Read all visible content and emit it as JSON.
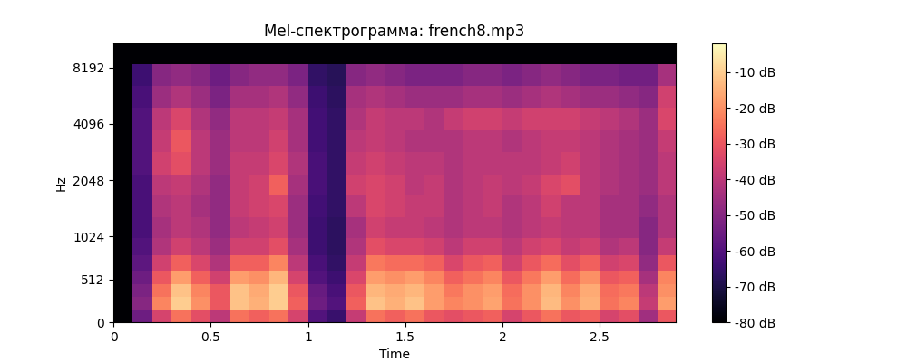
{
  "chart_data": {
    "type": "heatmap",
    "title": "Mel-спектрограмма: french8.mp3",
    "xlabel": "Time",
    "ylabel": "Hz",
    "color": "magma",
    "xlim": [
      0,
      2.89
    ],
    "ylim": [
      0,
      11025
    ],
    "xticks": [
      0,
      0.5,
      1,
      1.5,
      2,
      2.5
    ],
    "yticks": [
      0,
      512,
      1024,
      2048,
      4096,
      8192
    ],
    "x_edges": [
      0,
      0.1,
      0.2,
      0.3,
      0.4,
      0.5,
      0.6,
      0.7,
      0.8,
      0.9,
      1.0,
      1.1,
      1.2,
      1.3,
      1.4,
      1.5,
      1.6,
      1.7,
      1.8,
      1.9,
      2.0,
      2.1,
      2.2,
      2.3,
      2.4,
      2.5,
      2.6,
      2.7,
      2.8,
      2.9
    ],
    "y_edges": [
      0,
      150,
      300,
      450,
      600,
      800,
      1000,
      1300,
      1700,
      2200,
      2900,
      3800,
      5000,
      6500,
      8500,
      11025
    ],
    "cells": [
      [
        -80,
        -55,
        -35,
        -25,
        -32,
        -40,
        -25,
        -28,
        -25,
        -35,
        -60,
        -65,
        -38,
        -25,
        -28,
        -25,
        -30,
        -32,
        -30,
        -28,
        -35,
        -30,
        -25,
        -30,
        -28,
        -35,
        -32,
        -45,
        -30
      ],
      [
        -80,
        -50,
        -22,
        -10,
        -20,
        -30,
        -12,
        -15,
        -10,
        -28,
        -55,
        -60,
        -28,
        -12,
        -15,
        -12,
        -18,
        -22,
        -20,
        -17,
        -25,
        -20,
        -13,
        -20,
        -15,
        -25,
        -22,
        -38,
        -18
      ],
      [
        -80,
        -52,
        -25,
        -12,
        -22,
        -30,
        -12,
        -16,
        -10,
        -30,
        -56,
        -62,
        -30,
        -14,
        -16,
        -14,
        -18,
        -24,
        -20,
        -18,
        -26,
        -20,
        -14,
        -22,
        -16,
        -26,
        -24,
        -40,
        -20
      ],
      [
        -80,
        -55,
        -30,
        -18,
        -28,
        -36,
        -18,
        -20,
        -14,
        -35,
        -60,
        -64,
        -34,
        -18,
        -20,
        -18,
        -22,
        -28,
        -25,
        -22,
        -30,
        -24,
        -18,
        -26,
        -20,
        -30,
        -28,
        -44,
        -22
      ],
      [
        -80,
        -58,
        -36,
        -28,
        -34,
        -42,
        -28,
        -28,
        -22,
        -40,
        -62,
        -66,
        -38,
        -24,
        -26,
        -26,
        -28,
        -34,
        -30,
        -28,
        -36,
        -30,
        -26,
        -32,
        -28,
        -36,
        -34,
        -48,
        -30
      ],
      [
        -80,
        -60,
        -42,
        -36,
        -40,
        -46,
        -36,
        -36,
        -32,
        -44,
        -64,
        -67,
        -42,
        -32,
        -34,
        -34,
        -36,
        -40,
        -36,
        -36,
        -40,
        -36,
        -34,
        -38,
        -36,
        -42,
        -40,
        -50,
        -38
      ],
      [
        -80,
        -62,
        -44,
        -40,
        -42,
        -48,
        -40,
        -38,
        -36,
        -46,
        -64,
        -67,
        -44,
        -36,
        -38,
        -38,
        -40,
        -42,
        -40,
        -40,
        -42,
        -40,
        -38,
        -40,
        -40,
        -44,
        -44,
        -50,
        -42
      ],
      [
        -80,
        -62,
        -42,
        -40,
        -44,
        -48,
        -38,
        -36,
        -34,
        -46,
        -63,
        -66,
        -40,
        -34,
        -36,
        -38,
        -38,
        -42,
        -40,
        -38,
        -42,
        -40,
        -36,
        -40,
        -40,
        -44,
        -44,
        -48,
        -42
      ],
      [
        -80,
        -62,
        -40,
        -38,
        -42,
        -48,
        -38,
        -36,
        -28,
        -44,
        -62,
        -66,
        -36,
        -34,
        -36,
        -40,
        -38,
        -42,
        -40,
        -38,
        -40,
        -38,
        -34,
        -32,
        -40,
        -42,
        -44,
        -46,
        -40
      ],
      [
        -80,
        -60,
        -36,
        -32,
        -40,
        -46,
        -38,
        -38,
        -34,
        -42,
        -62,
        -66,
        -38,
        -36,
        -38,
        -40,
        -40,
        -42,
        -40,
        -40,
        -40,
        -40,
        -38,
        -36,
        -40,
        -42,
        -44,
        -46,
        -40
      ],
      [
        -80,
        -60,
        -38,
        -30,
        -40,
        -46,
        -40,
        -40,
        -36,
        -44,
        -63,
        -66,
        -40,
        -38,
        -40,
        -42,
        -42,
        -42,
        -40,
        -40,
        -42,
        -40,
        -38,
        -38,
        -40,
        -42,
        -44,
        -46,
        -38
      ],
      [
        -80,
        -60,
        -40,
        -34,
        -42,
        -48,
        -40,
        -40,
        -38,
        -44,
        -63,
        -66,
        -42,
        -38,
        -40,
        -40,
        -42,
        -38,
        -36,
        -36,
        -38,
        -36,
        -36,
        -36,
        -38,
        -40,
        -42,
        -46,
        -34
      ],
      [
        -80,
        -62,
        -46,
        -42,
        -46,
        -52,
        -44,
        -44,
        -42,
        -48,
        -64,
        -67,
        -44,
        -42,
        -44,
        -46,
        -46,
        -46,
        -44,
        -44,
        -46,
        -44,
        -42,
        -44,
        -46,
        -46,
        -48,
        -50,
        -36
      ],
      [
        -80,
        -64,
        -50,
        -48,
        -50,
        -55,
        -50,
        -48,
        -48,
        -52,
        -66,
        -68,
        -50,
        -48,
        -50,
        -52,
        -52,
        -52,
        -50,
        -50,
        -52,
        -50,
        -48,
        -50,
        -52,
        -52,
        -54,
        -54,
        -44
      ],
      [
        -80,
        -80,
        -80,
        -80,
        -80,
        -80,
        -80,
        -80,
        -80,
        -80,
        -80,
        -80,
        -80,
        -80,
        -80,
        -80,
        -80,
        -80,
        -80,
        -80,
        -80,
        -80,
        -80,
        -80,
        -80,
        -80,
        -80,
        -80,
        -80
      ]
    ],
    "colorbar": {
      "range": [
        -80,
        -2
      ],
      "ticks": [
        {
          "value": -80,
          "label": "-80 dB"
        },
        {
          "value": -70,
          "label": "-70 dB"
        },
        {
          "value": -60,
          "label": "-60 dB"
        },
        {
          "value": -50,
          "label": "-50 dB"
        },
        {
          "value": -40,
          "label": "-40 dB"
        },
        {
          "value": -30,
          "label": "-30 dB"
        },
        {
          "value": -20,
          "label": "-20 dB"
        },
        {
          "value": -10,
          "label": "-10 dB"
        }
      ]
    }
  }
}
